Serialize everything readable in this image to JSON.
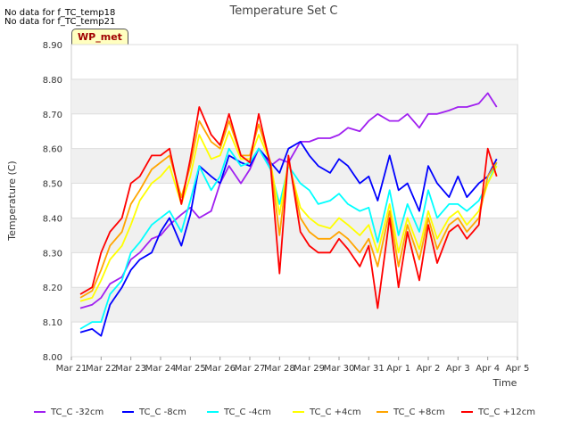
{
  "header": {
    "nodata1": "No data for f_TC_temp18",
    "nodata2": "No data for f_TC_temp21",
    "badge": "WP_met"
  },
  "chart_data": {
    "type": "line",
    "title": "Temperature Set C",
    "xlabel": "Time",
    "ylabel": "Temperature (C)",
    "ylim": [
      8.0,
      8.9
    ],
    "yticks": [
      "8.00",
      "8.10",
      "8.20",
      "8.30",
      "8.40",
      "8.50",
      "8.60",
      "8.70",
      "8.80",
      "8.90"
    ],
    "xticks": [
      "Mar 21",
      "Mar 22",
      "Mar 23",
      "Mar 24",
      "Mar 25",
      "Mar 26",
      "Mar 27",
      "Mar 28",
      "Mar 29",
      "Mar 30",
      "Mar 31",
      "Apr 1",
      "Apr 2",
      "Apr 3",
      "Apr 4",
      "Apr 5"
    ],
    "xlim_days": [
      0,
      15
    ],
    "grid": true,
    "legend_position": "bottom",
    "x": [
      0.3,
      0.7,
      1.0,
      1.3,
      1.7,
      2.0,
      2.3,
      2.7,
      3.0,
      3.3,
      3.7,
      4.0,
      4.3,
      4.7,
      5.0,
      5.3,
      5.7,
      6.0,
      6.3,
      6.7,
      7.0,
      7.3,
      7.7,
      8.0,
      8.3,
      8.7,
      9.0,
      9.3,
      9.7,
      10.0,
      10.3,
      10.7,
      11.0,
      11.3,
      11.7,
      12.0,
      12.3,
      12.7,
      13.0,
      13.3,
      13.7,
      14.0,
      14.3
    ],
    "series": [
      {
        "name": "TC_C -32cm",
        "color": "#a020f0",
        "values": [
          8.14,
          8.15,
          8.17,
          8.21,
          8.23,
          8.28,
          8.3,
          8.34,
          8.35,
          8.38,
          8.41,
          8.43,
          8.4,
          8.42,
          8.5,
          8.55,
          8.5,
          8.54,
          8.6,
          8.55,
          8.57,
          8.56,
          8.62,
          8.62,
          8.63,
          8.63,
          8.64,
          8.66,
          8.65,
          8.68,
          8.7,
          8.68,
          8.68,
          8.7,
          8.66,
          8.7,
          8.7,
          8.71,
          8.72,
          8.72,
          8.73,
          8.76,
          8.72
        ]
      },
      {
        "name": "TC_C -8cm",
        "color": "#0000ff",
        "values": [
          8.07,
          8.08,
          8.06,
          8.15,
          8.2,
          8.25,
          8.28,
          8.3,
          8.36,
          8.4,
          8.32,
          8.41,
          8.55,
          8.52,
          8.5,
          8.58,
          8.56,
          8.55,
          8.6,
          8.56,
          8.53,
          8.6,
          8.62,
          8.58,
          8.55,
          8.53,
          8.57,
          8.55,
          8.5,
          8.52,
          8.45,
          8.58,
          8.48,
          8.5,
          8.42,
          8.55,
          8.5,
          8.46,
          8.52,
          8.46,
          8.5,
          8.52,
          8.57
        ]
      },
      {
        "name": "TC_C -4cm",
        "color": "#00ffff",
        "values": [
          8.08,
          8.1,
          8.1,
          8.18,
          8.22,
          8.3,
          8.33,
          8.38,
          8.4,
          8.42,
          8.36,
          8.45,
          8.55,
          8.48,
          8.52,
          8.6,
          8.55,
          8.56,
          8.6,
          8.54,
          8.44,
          8.55,
          8.5,
          8.48,
          8.44,
          8.45,
          8.47,
          8.44,
          8.42,
          8.43,
          8.33,
          8.48,
          8.35,
          8.44,
          8.36,
          8.48,
          8.4,
          8.44,
          8.44,
          8.42,
          8.45,
          8.5,
          8.56
        ]
      },
      {
        "name": "TC_C +4cm",
        "color": "#ffff00",
        "values": [
          8.16,
          8.17,
          8.22,
          8.28,
          8.32,
          8.38,
          8.45,
          8.5,
          8.52,
          8.55,
          8.44,
          8.52,
          8.64,
          8.57,
          8.58,
          8.65,
          8.57,
          8.57,
          8.64,
          8.56,
          8.41,
          8.56,
          8.43,
          8.4,
          8.38,
          8.37,
          8.4,
          8.38,
          8.35,
          8.38,
          8.3,
          8.44,
          8.3,
          8.4,
          8.31,
          8.42,
          8.34,
          8.4,
          8.42,
          8.38,
          8.42,
          8.5,
          8.55
        ]
      },
      {
        "name": "TC_C +8cm",
        "color": "#ffa500",
        "values": [
          8.17,
          8.19,
          8.25,
          8.32,
          8.36,
          8.44,
          8.48,
          8.54,
          8.56,
          8.58,
          8.46,
          8.55,
          8.68,
          8.62,
          8.6,
          8.68,
          8.58,
          8.58,
          8.67,
          8.56,
          8.35,
          8.57,
          8.4,
          8.36,
          8.34,
          8.34,
          8.36,
          8.34,
          8.3,
          8.34,
          8.26,
          8.42,
          8.26,
          8.38,
          8.28,
          8.4,
          8.31,
          8.38,
          8.4,
          8.36,
          8.4,
          8.52,
          8.56
        ]
      },
      {
        "name": "TC_C +12cm",
        "color": "#ff0000",
        "values": [
          8.18,
          8.2,
          8.3,
          8.36,
          8.4,
          8.5,
          8.52,
          8.58,
          8.58,
          8.6,
          8.44,
          8.57,
          8.72,
          8.64,
          8.61,
          8.7,
          8.58,
          8.56,
          8.7,
          8.55,
          8.24,
          8.58,
          8.36,
          8.32,
          8.3,
          8.3,
          8.34,
          8.31,
          8.26,
          8.32,
          8.14,
          8.4,
          8.2,
          8.36,
          8.22,
          8.38,
          8.27,
          8.36,
          8.38,
          8.34,
          8.38,
          8.6,
          8.52
        ]
      }
    ]
  }
}
